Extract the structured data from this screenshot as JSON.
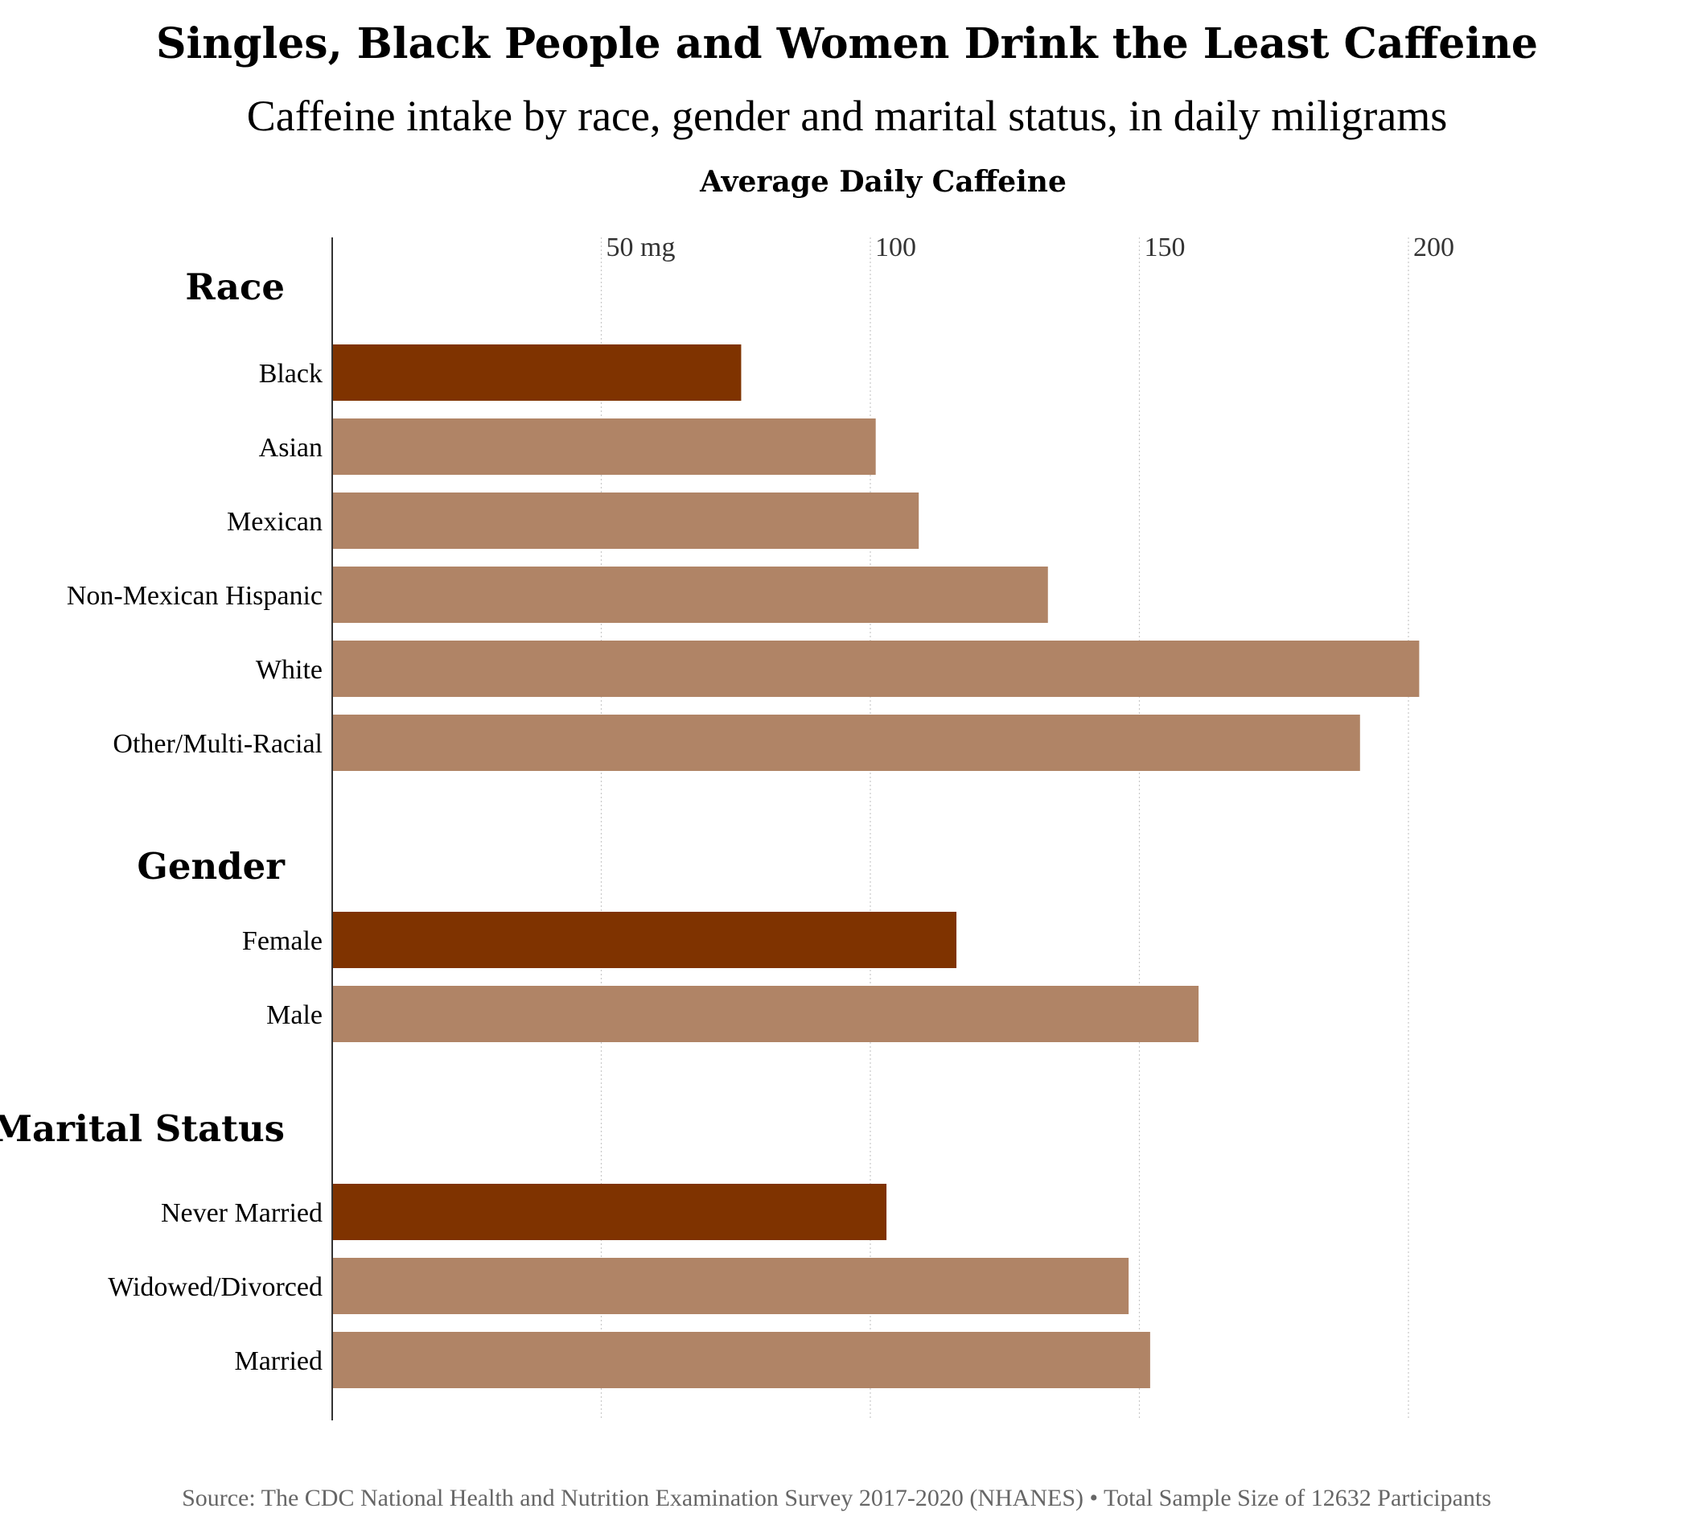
{
  "chart_data": {
    "type": "bar",
    "orientation": "horizontal",
    "title": "Singles, Black People and Women Drink the Least Caffeine",
    "subtitle": "Caffeine intake by race, gender and marital status, in daily miligrams",
    "xlabel": "Average Daily Caffeine",
    "xlim": [
      0,
      230
    ],
    "xticks": [
      {
        "value": 50,
        "label": "50 mg"
      },
      {
        "value": 100,
        "label": "100"
      },
      {
        "value": 150,
        "label": "150"
      },
      {
        "value": 200,
        "label": "200"
      }
    ],
    "grid": true,
    "groups": [
      {
        "name": "Race",
        "categories": [
          "Black",
          "Asian",
          "Mexican",
          "Non-Mexican Hispanic",
          "White",
          "Other/Multi-Racial"
        ],
        "values": [
          76,
          101,
          109,
          133,
          202,
          191
        ],
        "highlight": "Black"
      },
      {
        "name": "Gender",
        "categories": [
          "Female",
          "Male"
        ],
        "values": [
          116,
          161
        ],
        "highlight": "Female"
      },
      {
        "name": "Marital Status",
        "categories": [
          "Never Married",
          "Widowed/Divorced",
          "Married"
        ],
        "values": [
          103,
          148,
          152
        ],
        "highlight": "Never Married"
      }
    ],
    "colors": {
      "highlight": "#7f3300",
      "default": "#b08466"
    }
  },
  "source": "Source: The CDC National Health and Nutrition Examination Survey 2017-2020 (NHANES) • Total Sample Size of 12632 Participants"
}
